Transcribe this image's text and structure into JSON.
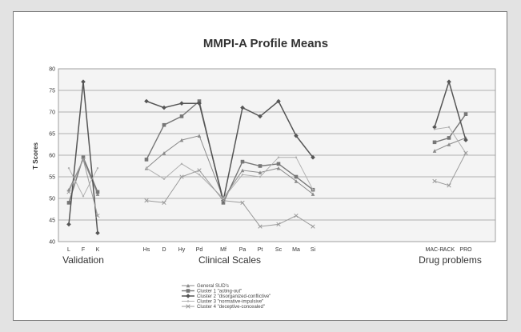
{
  "chart_data": {
    "type": "line",
    "title": "MMPI-A Profile Means",
    "ylabel": "T Scores",
    "ylim": [
      40,
      80
    ],
    "yticks": [
      40,
      45,
      50,
      55,
      60,
      65,
      70,
      75,
      80
    ],
    "grid": true,
    "categories": [
      "L",
      "F",
      "K",
      "Hs",
      "D",
      "Hy",
      "Pd",
      "Mf",
      "Pa",
      "Pt",
      "Sc",
      "Ma",
      "Si",
      "MAC-R",
      "ACK",
      "PRO"
    ],
    "groups": [
      {
        "label": "Validation",
        "indices": [
          0,
          1,
          2
        ]
      },
      {
        "label": "Clinical Scales",
        "indices": [
          3,
          4,
          5,
          6,
          7,
          8,
          9,
          10,
          11,
          12
        ]
      },
      {
        "label": "Drug problems",
        "indices": [
          13,
          14,
          15
        ]
      }
    ],
    "legend_position": "bottom",
    "series": [
      {
        "name": "General SUD's",
        "color": "#8a8a8a",
        "marker": "triangle",
        "width": 1,
        "values": [
          52,
          59,
          51,
          57,
          60.5,
          63.5,
          64.5,
          50,
          56.5,
          56,
          57,
          54,
          51,
          61,
          62.5,
          64
        ]
      },
      {
        "name": "Cluster 1 \"acting-out\"",
        "color": "#777777",
        "marker": "square",
        "width": 1.4,
        "values": [
          49,
          59.5,
          51.5,
          59,
          67,
          69,
          72.5,
          49,
          58.5,
          57.5,
          58,
          55,
          52,
          63,
          64,
          69.5
        ]
      },
      {
        "name": "Cluster 2 \"disorganized-conflictive\"",
        "color": "#555555",
        "marker": "diamond",
        "width": 1.5,
        "values": [
          44,
          77,
          42,
          72.5,
          71,
          72,
          72,
          49.5,
          71,
          69,
          72.5,
          64.5,
          59.5,
          66.5,
          77,
          63.5
        ]
      },
      {
        "name": "Cluster 3 \"normative-impulsive\"",
        "color": "#b0b0b0",
        "marker": "none",
        "width": 1,
        "values": [
          57,
          50.5,
          57,
          57,
          54.5,
          58,
          55.5,
          50,
          55.5,
          55,
          59.5,
          59.5,
          52,
          66,
          66.5,
          60.5
        ]
      },
      {
        "name": "Cluster 4 \"deceptive-concealed\"",
        "color": "#9a9a9a",
        "marker": "x",
        "width": 1,
        "values": [
          51.5,
          59,
          46,
          49.5,
          49,
          55,
          56.5,
          49.5,
          49,
          43.5,
          44,
          46,
          43.5,
          54,
          53,
          60.5
        ]
      }
    ]
  }
}
